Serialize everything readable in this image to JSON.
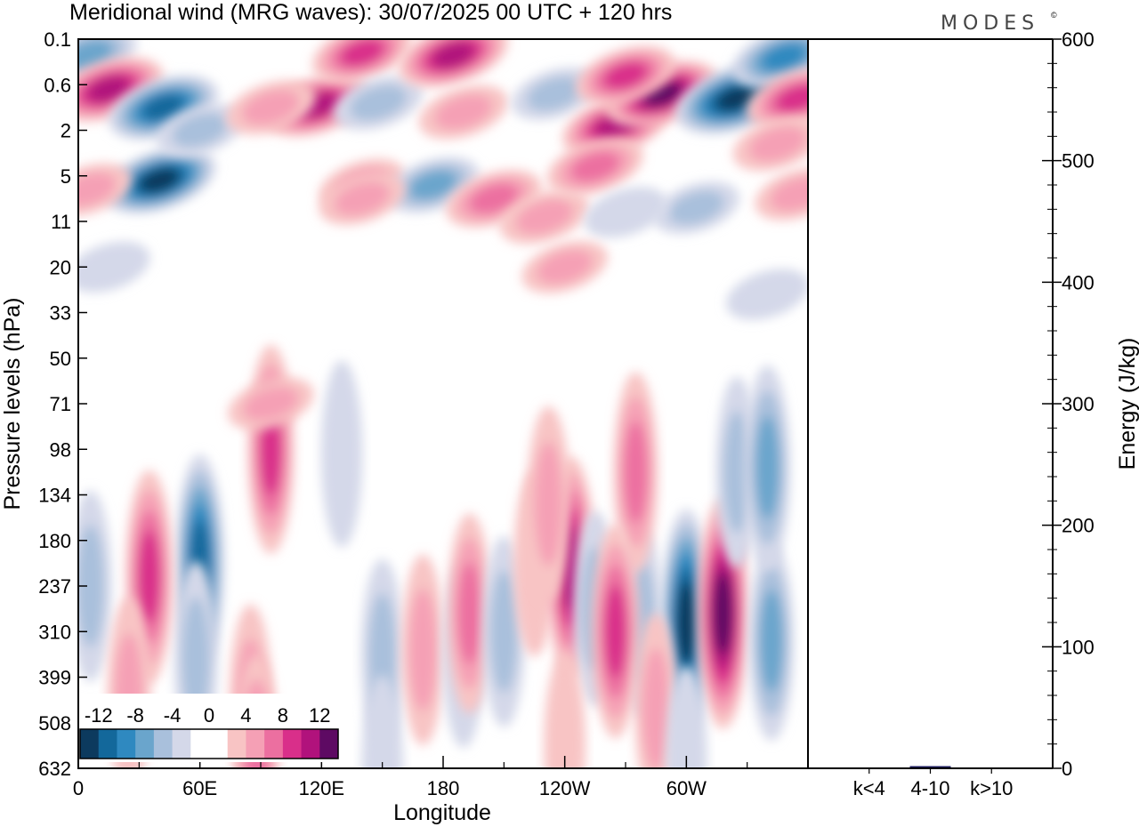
{
  "chart_data": {
    "title": "Meridional wind (MRG waves):  30/07/2025  00 UTC  + 120 hrs",
    "brand": "MODES",
    "brand_mark": "©",
    "contour_panel": {
      "type": "heatmap",
      "xlabel": "Longitude",
      "ylabel": "Pressure levels (hPa)",
      "x_ticks": [
        {
          "lon": 0,
          "label": "0"
        },
        {
          "lon": 60,
          "label": "60E"
        },
        {
          "lon": 120,
          "label": "120E"
        },
        {
          "lon": 180,
          "label": "180"
        },
        {
          "lon": 240,
          "label": "120W"
        },
        {
          "lon": 300,
          "label": "60W"
        }
      ],
      "x_range": [
        0,
        360
      ],
      "y_levels": [
        "0.1",
        "0.6",
        "2",
        "5",
        "11",
        "20",
        "33",
        "50",
        "71",
        "98",
        "134",
        "180",
        "237",
        "310",
        "399",
        "508",
        "632"
      ],
      "colorbar": {
        "labels": [
          "-12",
          "-8",
          "-4",
          "0",
          "4",
          "8",
          "12"
        ],
        "colors": [
          "#0c3a5e",
          "#13689b",
          "#2f89c0",
          "#6aa5cc",
          "#a9c0dc",
          "#d4d8e9",
          "#ffffff",
          "#ffffff",
          "#f8c4c4",
          "#f5a0b5",
          "#ec6fa0",
          "#d92f8a",
          "#b1127c",
          "#5e0a63"
        ]
      },
      "features": [
        {
          "lon": 5,
          "level": 0.35,
          "value": -6
        },
        {
          "lon": 15,
          "level": 1.1,
          "value": 10
        },
        {
          "lon": 42,
          "level": 1.5,
          "value": -10
        },
        {
          "lon": 40,
          "level": 3.1,
          "value": -11
        },
        {
          "lon": 5,
          "level": 3.3,
          "value": 3
        },
        {
          "lon": 60,
          "level": 2.0,
          "value": -3
        },
        {
          "lon": 118,
          "level": 1.45,
          "value": 9
        },
        {
          "lon": 95,
          "level": 1.5,
          "value": 4
        },
        {
          "lon": 140,
          "level": 0.3,
          "value": 7
        },
        {
          "lon": 148,
          "level": 1.4,
          "value": -4
        },
        {
          "lon": 140,
          "level": 3.2,
          "value": 3
        },
        {
          "lon": 185,
          "level": 0.35,
          "value": 10
        },
        {
          "lon": 190,
          "level": 1.6,
          "value": 4
        },
        {
          "lon": 175,
          "level": 3.2,
          "value": -5
        },
        {
          "lon": 205,
          "level": 3.5,
          "value": 6
        },
        {
          "lon": 230,
          "level": 3.9,
          "value": 4
        },
        {
          "lon": 235,
          "level": 1.2,
          "value": -3
        },
        {
          "lon": 265,
          "level": 1.9,
          "value": 9
        },
        {
          "lon": 255,
          "level": 2.8,
          "value": 6
        },
        {
          "lon": 288,
          "level": 1.2,
          "value": 11
        },
        {
          "lon": 270,
          "level": 0.8,
          "value": 7
        },
        {
          "lon": 325,
          "level": 1.3,
          "value": -14
        },
        {
          "lon": 348,
          "level": 0.4,
          "value": -8
        },
        {
          "lon": 355,
          "level": 1.3,
          "value": 8
        },
        {
          "lon": 345,
          "level": 2.3,
          "value": 4
        },
        {
          "lon": 355,
          "level": 3.4,
          "value": 3
        },
        {
          "lon": 305,
          "level": 3.7,
          "value": -3
        },
        {
          "lon": 270,
          "level": 3.8,
          "value": -2
        },
        {
          "lon": 240,
          "level": 5.0,
          "value": 3
        },
        {
          "lon": 140,
          "level": 3.5,
          "value": 3
        },
        {
          "lon": 15,
          "level": 5.0,
          "value": -2
        },
        {
          "lon": 340,
          "level": 5.6,
          "value": -2
        },
        {
          "lon": 95,
          "level": 9.0,
          "value": 7
        },
        {
          "lon": 95,
          "level": 8.0,
          "value": 3
        },
        {
          "lon": 130,
          "level": 9.1,
          "value": -2
        },
        {
          "lon": 60,
          "level": 11.5,
          "value": -9
        },
        {
          "lon": 58,
          "level": 13.6,
          "value": -4
        },
        {
          "lon": 35,
          "level": 11.8,
          "value": 8
        },
        {
          "lon": 6,
          "level": 12.0,
          "value": -3
        },
        {
          "lon": 25,
          "level": 14.4,
          "value": 4
        },
        {
          "lon": 85,
          "level": 14.5,
          "value": 3
        },
        {
          "lon": 88,
          "level": 15.7,
          "value": 5
        },
        {
          "lon": 150,
          "level": 13.5,
          "value": -3
        },
        {
          "lon": 170,
          "level": 13.4,
          "value": 3
        },
        {
          "lon": 190,
          "level": 13.5,
          "value": -2
        },
        {
          "lon": 193,
          "level": 12.6,
          "value": 5
        },
        {
          "lon": 210,
          "level": 13.0,
          "value": -3
        },
        {
          "lon": 225,
          "level": 11.5,
          "value": 2
        },
        {
          "lon": 243,
          "level": 11.6,
          "value": 10
        },
        {
          "lon": 232,
          "level": 10.2,
          "value": 4
        },
        {
          "lon": 255,
          "level": 12.5,
          "value": -4
        },
        {
          "lon": 278,
          "level": 12.8,
          "value": -3
        },
        {
          "lon": 275,
          "level": 9.5,
          "value": 5
        },
        {
          "lon": 265,
          "level": 13.0,
          "value": 8
        },
        {
          "lon": 300,
          "level": 12.8,
          "value": -11
        },
        {
          "lon": 318,
          "level": 12.6,
          "value": 12
        },
        {
          "lon": 342,
          "level": 13.2,
          "value": -5
        },
        {
          "lon": 325,
          "level": 9.5,
          "value": -3
        },
        {
          "lon": 340,
          "level": 9.4,
          "value": -6
        },
        {
          "lon": 285,
          "level": 14.7,
          "value": 3
        },
        {
          "lon": 300,
          "level": 15.8,
          "value": -2
        },
        {
          "lon": 150,
          "level": 16.0,
          "value": -2
        },
        {
          "lon": 240,
          "level": 15.5,
          "value": 2
        }
      ]
    },
    "energy_panel": {
      "type": "bar",
      "ylabel": "Energy (J/kg)",
      "ylim": [
        0,
        600
      ],
      "y_ticks": [
        0,
        100,
        200,
        300,
        400,
        500,
        600
      ],
      "categories": [
        "k<4",
        "4-10",
        "k>10"
      ],
      "values": [
        0.3,
        1.8,
        0.2
      ],
      "bar_color": "#1c1c5e"
    }
  }
}
